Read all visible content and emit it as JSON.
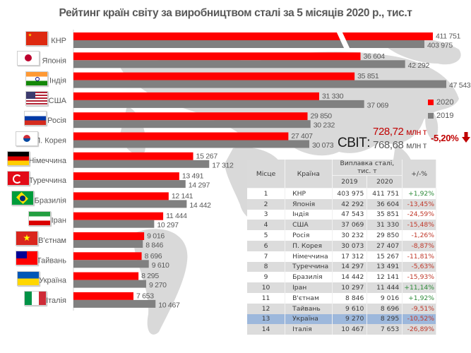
{
  "title": "Рейтинг країн світу за виробництвом сталі за 5 місяців 2020 р., тис.т",
  "colors": {
    "series_2020": "#ff0000",
    "series_2019": "#808080",
    "positive": "#2e8b3a",
    "negative": "#c0392b",
    "highlight_row": "#9db8dc"
  },
  "chart_data": {
    "type": "bar",
    "orientation": "horizontal",
    "title": "Рейтинг країн світу за виробництвом сталі за 5 місяців 2020 р., тис.т",
    "xlabel": "",
    "ylabel": "",
    "units": "тис. т",
    "grid": false,
    "axis_break": {
      "category": "КНР",
      "note": "bars broken (truncated scale)"
    },
    "legend": {
      "position": "right",
      "entries": [
        "2020",
        "2019"
      ]
    },
    "categories": [
      "КНР",
      "Японія",
      "Індія",
      "США",
      "Росія",
      "П. Корея",
      "Німеччина",
      "Туреччина",
      "Бразилія",
      "Іран",
      "В'єтнам",
      "Тайвань",
      "Україна",
      "Італія"
    ],
    "flags": [
      "flag-china",
      "flag-japan",
      "flag-india",
      "flag-usa",
      "flag-russia",
      "flag-south-korea",
      "flag-germany",
      "flag-turkey",
      "flag-brazil",
      "flag-iran",
      "flag-vietnam",
      "flag-taiwan",
      "flag-ukraine",
      "flag-italy"
    ],
    "series": [
      {
        "name": "2020",
        "values": [
          411751,
          36604,
          35851,
          31330,
          29850,
          27407,
          15267,
          13491,
          12141,
          11444,
          9016,
          8696,
          8295,
          7653
        ],
        "labels": [
          "411 751",
          "36 604",
          "35 851",
          "31 330",
          "29 850",
          "27 407",
          "15 267",
          "13 491",
          "12 141",
          "11 444",
          "9 016",
          "8 696",
          "8 295",
          "7 653"
        ]
      },
      {
        "name": "2019",
        "values": [
          403975,
          42292,
          47543,
          37069,
          30232,
          30073,
          17312,
          14297,
          14442,
          10297,
          8846,
          9610,
          9270,
          10467
        ],
        "labels": [
          "403 975",
          "42 292",
          "47 543",
          "37 069",
          "30 232",
          "30 073",
          "17 312",
          "14 297",
          "14 442",
          "10 297",
          "8 846",
          "9 610",
          "9 270",
          "10 467"
        ]
      }
    ],
    "xlim": [
      0,
      48000
    ]
  },
  "world": {
    "label": "СВІТ:",
    "value_2020": "728,72",
    "value_2019": "768,68",
    "unit": "млн т",
    "change": "-5,20%",
    "change_icon": "down-arrow-icon"
  },
  "table": {
    "headers": {
      "rank": "Місце",
      "country": "Країна",
      "group": "Виплавка сталі, тис. т",
      "y2019": "2019",
      "y2020": "2020",
      "change": "+/-%"
    },
    "rows": [
      {
        "rank": "1",
        "country": "КНР",
        "y2019": "403 975",
        "y2020": "411 751",
        "change": "+1,92%"
      },
      {
        "rank": "2",
        "country": "Японія",
        "y2019": "42 292",
        "y2020": "36 604",
        "change": "-13,45%"
      },
      {
        "rank": "3",
        "country": "Індія",
        "y2019": "47 543",
        "y2020": "35 851",
        "change": "-24,59%"
      },
      {
        "rank": "4",
        "country": "США",
        "y2019": "37 069",
        "y2020": "31 330",
        "change": "-15,48%"
      },
      {
        "rank": "5",
        "country": "Росія",
        "y2019": "30 232",
        "y2020": "29 850",
        "change": "-1,26%"
      },
      {
        "rank": "6",
        "country": "П. Корея",
        "y2019": "30 073",
        "y2020": "27 407",
        "change": "-8,87%"
      },
      {
        "rank": "7",
        "country": "Німеччина",
        "y2019": "17 312",
        "y2020": "15 267",
        "change": "-11,81%"
      },
      {
        "rank": "8",
        "country": "Туреччина",
        "y2019": "14 297",
        "y2020": "13 491",
        "change": "-5,63%"
      },
      {
        "rank": "9",
        "country": "Бразилія",
        "y2019": "14 442",
        "y2020": "12 141",
        "change": "-15,93%"
      },
      {
        "rank": "10",
        "country": "Іран",
        "y2019": "10 297",
        "y2020": "11 444",
        "change": "+11,14%"
      },
      {
        "rank": "11",
        "country": "В'єтнам",
        "y2019": "8 846",
        "y2020": "9 016",
        "change": "+1,92%"
      },
      {
        "rank": "12",
        "country": "Тайвань",
        "y2019": "9 610",
        "y2020": "8 696",
        "change": "-9,51%"
      },
      {
        "rank": "13",
        "country": "Україна",
        "y2019": "9 270",
        "y2020": "8 295",
        "change": "-10,52%",
        "highlight": true
      },
      {
        "rank": "14",
        "country": "Італія",
        "y2019": "10 467",
        "y2020": "7 653",
        "change": "-26,89%"
      }
    ]
  }
}
